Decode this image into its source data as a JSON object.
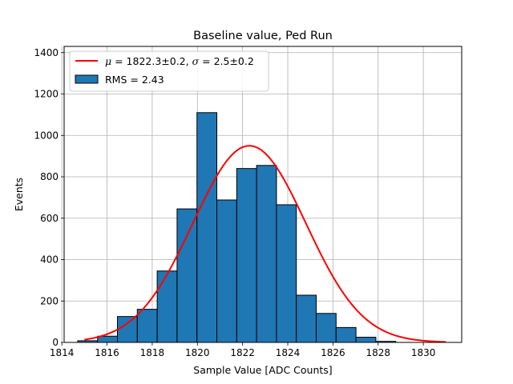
{
  "chart_data": {
    "type": "bar",
    "title": "Baseline value, Ped Run",
    "xlabel": "Sample Value [ADC Counts]",
    "ylabel": "Events",
    "xlim": [
      1814.1,
      1831.7
    ],
    "ylim": [
      0,
      1430
    ],
    "grid": true,
    "legend_position": "upper-left",
    "x_ticks": [
      1814,
      1816,
      1818,
      1820,
      1822,
      1824,
      1826,
      1828,
      1830
    ],
    "y_ticks": [
      0,
      200,
      400,
      600,
      800,
      1000,
      1200,
      1400
    ],
    "histogram": {
      "name": "RMS = 2.43",
      "color": "#1f77b4",
      "edgecolor": "#000000",
      "bin_edges": [
        1814.7,
        1815.58,
        1816.46,
        1817.34,
        1818.22,
        1819.1,
        1819.98,
        1820.86,
        1821.74,
        1822.62,
        1823.5,
        1824.38,
        1825.26,
        1826.14,
        1827.02,
        1827.9,
        1828.78
      ],
      "counts": [
        8,
        30,
        125,
        160,
        345,
        645,
        1110,
        688,
        840,
        855,
        665,
        228,
        140,
        72,
        25,
        5
      ]
    },
    "fit": {
      "name_mu": "1822.3±0.2",
      "name_sigma": "2.5±0.2",
      "color": "#ff0000",
      "mean": 1822.3,
      "sigma": 2.5,
      "amplitude": 950,
      "x_range": [
        1815,
        1831
      ]
    }
  }
}
